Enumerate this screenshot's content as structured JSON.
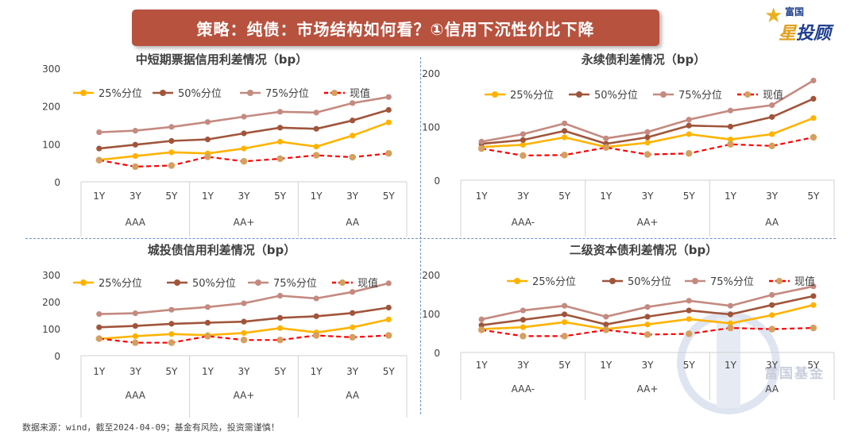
{
  "header": {
    "title": "策略：纯债：市场结构如何看？①信用下沉性价比下降",
    "logo_top": "富国",
    "logo_main_a": "星",
    "logo_main_b": "投顾"
  },
  "footer": {
    "source": "数据来源：wind，截至2024-04-09；基金有风险，投资需谨慎！"
  },
  "watermark": {
    "text": "富国基金"
  },
  "colors": {
    "p25": "#ffb300",
    "p50": "#a0553b",
    "p75": "#c48a80",
    "current": "#ff0000",
    "current_marker": "#d4a060",
    "banner": "#b7523f"
  },
  "chart_data": [
    {
      "type": "line",
      "title": "中短期票据信用利差情况（bp）",
      "categories": [
        "1Y",
        "3Y",
        "5Y",
        "1Y",
        "3Y",
        "5Y",
        "1Y",
        "3Y",
        "5Y"
      ],
      "groups": [
        {
          "label": "AAA",
          "span": 3
        },
        {
          "label": "AA+",
          "span": 3
        },
        {
          "label": "AA",
          "span": 3
        }
      ],
      "ylim": [
        0,
        300
      ],
      "yticks": [
        0,
        100,
        200,
        300
      ],
      "legend": [
        "25%分位",
        "50%分位",
        "75%分位",
        "现值"
      ],
      "series": [
        {
          "name": "25%分位",
          "values": [
            58,
            68,
            78,
            75,
            88,
            106,
            93,
            122,
            157
          ]
        },
        {
          "name": "50%分位",
          "values": [
            88,
            98,
            108,
            112,
            128,
            143,
            140,
            162,
            190
          ]
        },
        {
          "name": "75%分位",
          "values": [
            131,
            135,
            145,
            158,
            172,
            185,
            183,
            208,
            224
          ]
        },
        {
          "name": "现值",
          "values": [
            57,
            40,
            43,
            66,
            54,
            61,
            70,
            65,
            75
          ]
        }
      ]
    },
    {
      "type": "line",
      "title": "永续债利差情况（bp）",
      "categories": [
        "1Y",
        "3Y",
        "5Y",
        "1Y",
        "3Y",
        "5Y",
        "1Y",
        "3Y",
        "5Y"
      ],
      "groups": [
        {
          "label": "AAA-",
          "span": 3
        },
        {
          "label": "AA+",
          "span": 3
        },
        {
          "label": "AA",
          "span": 3
        }
      ],
      "ylim": [
        0,
        200
      ],
      "yticks": [
        0,
        100,
        200
      ],
      "legend": [
        "25%分位",
        "50%分位",
        "75%分位",
        "现值"
      ],
      "series": [
        {
          "name": "25%分位",
          "values": [
            62,
            66,
            80,
            62,
            70,
            86,
            76,
            86,
            116
          ]
        },
        {
          "name": "50%分位",
          "values": [
            68,
            75,
            92,
            68,
            80,
            102,
            100,
            118,
            152
          ]
        },
        {
          "name": "75%分位",
          "values": [
            72,
            86,
            106,
            78,
            90,
            113,
            130,
            140,
            186
          ]
        },
        {
          "name": "现值",
          "values": [
            59,
            46,
            47,
            61,
            48,
            50,
            67,
            64,
            80
          ]
        }
      ]
    },
    {
      "type": "line",
      "title": "城投债信用利差情况（bp）",
      "categories": [
        "1Y",
        "3Y",
        "5Y",
        "1Y",
        "3Y",
        "5Y",
        "1Y",
        "3Y",
        "5Y"
      ],
      "groups": [
        {
          "label": "AAA",
          "span": 3
        },
        {
          "label": "AA+",
          "span": 3
        },
        {
          "label": "AA",
          "span": 3
        }
      ],
      "ylim": [
        0,
        300
      ],
      "yticks": [
        0,
        100,
        200,
        300
      ],
      "legend": [
        "25%分位",
        "50%分位",
        "75%分位",
        "现值"
      ],
      "series": [
        {
          "name": "25%分位",
          "values": [
            62,
            72,
            80,
            76,
            84,
            102,
            86,
            105,
            134
          ]
        },
        {
          "name": "50%分位",
          "values": [
            105,
            110,
            118,
            122,
            126,
            140,
            146,
            158,
            178
          ]
        },
        {
          "name": "75%分位",
          "values": [
            154,
            157,
            170,
            180,
            194,
            222,
            212,
            236,
            268
          ]
        },
        {
          "name": "现值",
          "values": [
            63,
            48,
            48,
            72,
            58,
            58,
            75,
            68,
            75
          ]
        }
      ]
    },
    {
      "type": "line",
      "title": "二级资本债利差情况（bp）",
      "categories": [
        "1Y",
        "3Y",
        "5Y",
        "1Y",
        "3Y",
        "5Y",
        "1Y",
        "3Y",
        "5Y"
      ],
      "groups": [
        {
          "label": "AAA-",
          "span": 3
        },
        {
          "label": "AA+",
          "span": 3
        },
        {
          "label": "AA",
          "span": 3
        }
      ],
      "ylim": [
        0,
        200
      ],
      "yticks": [
        0,
        100,
        200
      ],
      "legend": [
        "25%分位",
        "50%分位",
        "75%分位",
        "现值"
      ],
      "series": [
        {
          "name": "25%分位",
          "values": [
            60,
            65,
            78,
            60,
            72,
            86,
            75,
            96,
            122
          ]
        },
        {
          "name": "50%分位",
          "values": [
            70,
            84,
            98,
            72,
            92,
            108,
            98,
            122,
            145
          ]
        },
        {
          "name": "75%分位",
          "values": [
            85,
            108,
            120,
            92,
            117,
            133,
            120,
            148,
            170
          ]
        },
        {
          "name": "现值",
          "values": [
            58,
            42,
            42,
            58,
            46,
            48,
            63,
            60,
            63
          ]
        }
      ]
    }
  ]
}
